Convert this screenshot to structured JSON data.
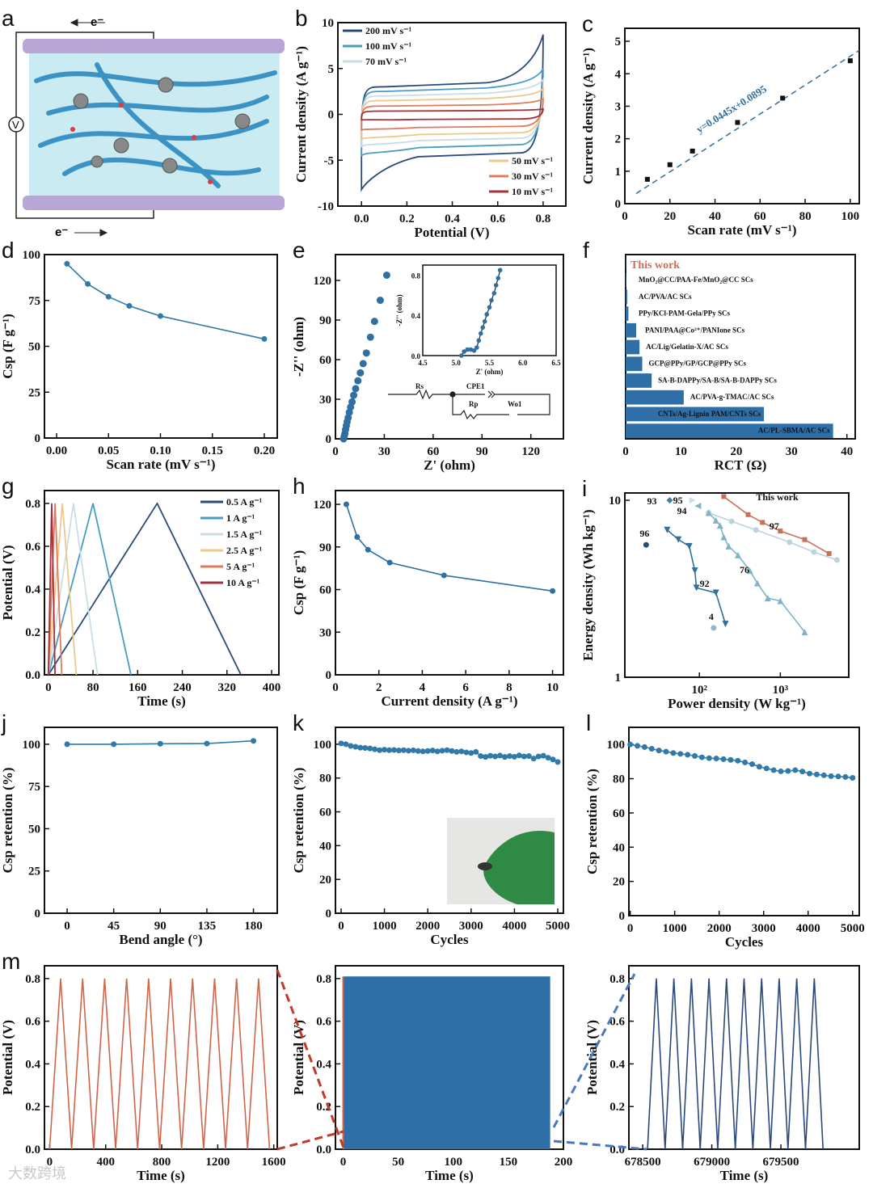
{
  "panel_a": {
    "letter": "a",
    "electron": "e⁻",
    "voltmeter": "V"
  },
  "circuit": {
    "rs": "Rs",
    "cpe": "CPE1",
    "rp": "Rp",
    "wo": "Wo1"
  },
  "watermark": "大数跨境",
  "chart_data": [
    {
      "id": "b",
      "letter": "b",
      "type": "cv",
      "xlim": [
        -0.104,
        0.9
      ],
      "ylim": [
        -10,
        10
      ],
      "xticks": [
        0,
        0.2,
        0.4,
        0.6,
        0.8
      ],
      "xtick_labels": [
        "0.0",
        "0.2",
        "0.4",
        "0.6",
        "0.8"
      ],
      "yticks": [
        -10,
        -5,
        0,
        5,
        10
      ],
      "ytick_labels": [
        "-10",
        "-5",
        "0",
        "5",
        "10"
      ],
      "xlabel": "Potential (V)",
      "ylabel": "Current density (A g⁻¹)",
      "series": [
        {
          "name": "200 mV s⁻¹",
          "color": "#2b4a7a",
          "i_max": 8.7,
          "i_top": 3.0,
          "i_bot": -4.2,
          "i_min": -8.2
        },
        {
          "name": "100 mV s⁻¹",
          "color": "#4a9cc3",
          "i_max": 5.0,
          "i_top": 2.5,
          "i_bot": -3.3,
          "i_min": -4.5
        },
        {
          "name": "70 mV s⁻¹",
          "color": "#c9dde6",
          "i_max": 3.8,
          "i_top": 2.0,
          "i_bot": -2.6,
          "i_min": -3.5
        },
        {
          "name": "50 mV s⁻¹",
          "color": "#ecc98a",
          "i_max": 2.8,
          "i_top": 1.5,
          "i_bot": -2.0,
          "i_min": -2.7
        },
        {
          "name": "30 mV s⁻¹",
          "color": "#e07b5c",
          "i_max": 1.7,
          "i_top": 0.9,
          "i_bot": -1.3,
          "i_min": -1.7
        },
        {
          "name": "10 mV s⁻¹",
          "color": "#a5303c",
          "i_max": 0.6,
          "i_top": 0.35,
          "i_bot": -0.5,
          "i_min": -0.6
        }
      ]
    },
    {
      "id": "c",
      "letter": "c",
      "type": "scatter-fit",
      "xlim": [
        0,
        104
      ],
      "ylim": [
        0,
        5.4
      ],
      "xticks": [
        0,
        20,
        40,
        60,
        80,
        100
      ],
      "xtick_labels": [
        "0",
        "20",
        "40",
        "60",
        "80",
        "100"
      ],
      "yticks": [
        0,
        1,
        2,
        3,
        4,
        5
      ],
      "ytick_labels": [
        "0",
        "1",
        "2",
        "3",
        "4",
        "5"
      ],
      "xlabel": "Scan rate (mV s⁻¹)",
      "ylabel": "Current density (A g⁻¹)",
      "x": [
        10,
        20,
        30,
        50,
        70,
        100
      ],
      "y": [
        0.75,
        1.2,
        1.62,
        2.5,
        3.25,
        4.4
      ],
      "fit": {
        "slope": 0.0445,
        "intercept": 0.0895,
        "label": "y=0.0445x+0.0895",
        "color": "#2f6f9a"
      }
    },
    {
      "id": "d",
      "letter": "d",
      "type": "line",
      "xlim": [
        -0.0117,
        0.2125
      ],
      "ylim": [
        0,
        100
      ],
      "xticks": [
        0,
        0.05,
        0.1,
        0.15,
        0.2
      ],
      "xtick_labels": [
        "0.00",
        "0.05",
        "0.10",
        "0.15",
        "0.20"
      ],
      "yticks": [
        0,
        25,
        50,
        75,
        100
      ],
      "ytick_labels": [
        "0",
        "25",
        "50",
        "75",
        "100"
      ],
      "xlabel": "Scan rate (mV s⁻¹)",
      "ylabel": "Csp (F g⁻¹)",
      "series": [
        {
          "color": "#2f7aa8",
          "x": [
            0.01,
            0.03,
            0.05,
            0.07,
            0.1,
            0.2
          ],
          "y": [
            95,
            84,
            77,
            72,
            66.5,
            54
          ]
        }
      ]
    },
    {
      "id": "e",
      "letter": "e",
      "type": "scatter",
      "xlim": [
        0,
        140
      ],
      "ylim": [
        0,
        139.6
      ],
      "xticks": [
        0,
        30,
        60,
        90,
        120
      ],
      "xtick_labels": [
        "0",
        "30",
        "60",
        "90",
        "120"
      ],
      "yticks": [
        0,
        30,
        60,
        90,
        120
      ],
      "ytick_labels": [
        "0",
        "30",
        "60",
        "90",
        "120"
      ],
      "xlabel": "Z' (ohm)",
      "ylabel": "-Z'' (ohm)",
      "series": [
        {
          "color": "#2f6fa3",
          "x": [
            5,
            5.4,
            5.8,
            6.2,
            6.7,
            7.2,
            7.8,
            8.5,
            9.3,
            10.2,
            11.2,
            12.4,
            13.8,
            15.3,
            17,
            19,
            21.5,
            24,
            27.5,
            31.5
          ],
          "y": [
            0,
            2,
            4,
            7,
            10,
            13,
            16,
            20,
            24,
            28,
            33,
            38,
            44,
            50,
            57,
            65,
            77,
            89,
            105,
            124
          ]
        }
      ],
      "inset": {
        "xlim": [
          4.5,
          6.5
        ],
        "ylim": [
          0,
          0.9
        ],
        "xticks": [
          4.5,
          5.0,
          5.5,
          6.0,
          6.5
        ],
        "xtick_labels": [
          "4.5",
          "5.0",
          "5.5",
          "6.0",
          "6.5"
        ],
        "yticks": [
          0,
          0.4,
          0.8
        ],
        "ytick_labels": [
          "0.0",
          "0.4",
          "0.8"
        ],
        "xlabel": "Z' (ohm)",
        "ylabel": "-Z'' (ohm)",
        "x": [
          5.08,
          5.12,
          5.17,
          5.22,
          5.27,
          5.31,
          5.34,
          5.37,
          5.4,
          5.43,
          5.46,
          5.5,
          5.53,
          5.57,
          5.6,
          5.63,
          5.66
        ],
        "y": [
          0,
          0.04,
          0.06,
          0.06,
          0.05,
          0.08,
          0.15,
          0.22,
          0.28,
          0.34,
          0.41,
          0.48,
          0.55,
          0.62,
          0.7,
          0.77,
          0.85
        ]
      }
    },
    {
      "id": "f",
      "letter": "f",
      "type": "barh",
      "xlim": [
        0,
        41.5
      ],
      "xticks": [
        0,
        10,
        20,
        30,
        40
      ],
      "xtick_labels": [
        "0",
        "10",
        "20",
        "30",
        "40"
      ],
      "xlabel": "RCT (Ω)",
      "color": "#2f6fa8",
      "highlight_color": "#c9705a",
      "categories": [
        "This work",
        "MnO₂@CC/PAA-Fe/MnO₂@CC SCs",
        "AC/PVA/AC  SCs",
        "PPy/KCl-PAM-Gela/PPy  SCs",
        "PANI/PAA@Co²⁺/PANIone SCs",
        "AC/Lig/Gelatin-X/AC  SCs",
        "GCP@PPy/GP/GCP@PPy  SCs",
        "SA-B-DAPPy/SA-B/SA-B-DAPPy  SCs",
        "AC/PVA-g-TMAC/AC SCs",
        "CNTs/Ag-Lignin PAM/CNTs SCs",
        "AC/PL-SBMA/AC SCs"
      ],
      "values": [
        0.05,
        0.1,
        0.3,
        0.5,
        1.9,
        2.5,
        3.0,
        4.7,
        10.5,
        25,
        37.5
      ]
    },
    {
      "id": "g",
      "letter": "g",
      "type": "gcd",
      "xlim": [
        -7,
        413
      ],
      "ylim": [
        0,
        0.86
      ],
      "xticks": [
        0,
        80,
        160,
        240,
        320,
        400
      ],
      "xtick_labels": [
        "0",
        "80",
        "160",
        "240",
        "320",
        "400"
      ],
      "yticks": [
        0,
        0.2,
        0.4,
        0.6,
        0.8
      ],
      "ytick_labels": [
        "0.0",
        "0.2",
        "0.4",
        "0.6",
        "0.8"
      ],
      "xlabel": "Time (s)",
      "ylabel": "Potential (V)",
      "series": [
        {
          "name": "0.5 A g⁻¹",
          "color": "#2b4a7a",
          "t_charge": 195,
          "t_end": 345
        },
        {
          "name": "1 A g⁻¹",
          "color": "#4a9cc3",
          "t_charge": 80,
          "t_end": 148
        },
        {
          "name": "1.5 A g⁻¹",
          "color": "#c9dde6",
          "t_charge": 45,
          "t_end": 88
        },
        {
          "name": "2.5 A g⁻¹",
          "color": "#ecc98a",
          "t_charge": 25,
          "t_end": 50
        },
        {
          "name": "5 A g⁻¹",
          "color": "#e07b5c",
          "t_charge": 12,
          "t_end": 24
        },
        {
          "name": "10 A g⁻¹",
          "color": "#a5303c",
          "t_charge": 6,
          "t_end": 12
        }
      ]
    },
    {
      "id": "h",
      "letter": "h",
      "type": "line",
      "xlim": [
        0,
        10.5
      ],
      "ylim": [
        0,
        129.7
      ],
      "xticks": [
        0,
        2,
        4,
        6,
        8,
        10
      ],
      "xtick_labels": [
        "0",
        "2",
        "4",
        "6",
        "8",
        "10"
      ],
      "yticks": [
        0,
        30,
        60,
        90,
        120
      ],
      "ytick_labels": [
        "0",
        "30",
        "60",
        "90",
        "120"
      ],
      "xlabel": "Current density (A g⁻¹)",
      "ylabel": "Csp (F g⁻¹)",
      "series": [
        {
          "color": "#2f6fa3",
          "x": [
            0.5,
            1,
            1.5,
            2.5,
            5,
            10
          ],
          "y": [
            120,
            97,
            88,
            79,
            70,
            59
          ]
        }
      ]
    },
    {
      "id": "i",
      "letter": "i",
      "type": "ragone",
      "xscale": "log",
      "yscale": "log",
      "xlim": [
        12,
        7000
      ],
      "ylim": [
        1,
        11
      ],
      "xticks": [
        100,
        1000
      ],
      "xtick_labels": [
        "10²",
        "10³"
      ],
      "yticks": [
        1,
        10
      ],
      "ytick_labels": [
        "1",
        "10"
      ],
      "xlabel": "Power density (W kg⁻¹)",
      "ylabel": "Energy density (Wh kg⁻¹)",
      "series": [
        {
          "name": "This work",
          "color": "#c9705a",
          "marker": "square",
          "x": [
            200,
            400,
            600,
            1000,
            2000,
            4000
          ],
          "y": [
            10.5,
            8.3,
            7.5,
            6.7,
            6.0,
            5.0
          ]
        },
        {
          "name": "97",
          "color": "#b9d3df",
          "marker": "circle",
          "x": [
            130,
            250,
            500,
            1300,
            2600,
            5000
          ],
          "y": [
            8.5,
            7.6,
            6.8,
            5.8,
            5.1,
            4.6
          ]
        },
        {
          "name": "76",
          "color": "#7fb3c9",
          "marker": "tri-up",
          "x": [
            130,
            160,
            180,
            200,
            230,
            300,
            420,
            520,
            700,
            1000,
            2000
          ],
          "y": [
            8.5,
            7.7,
            7.2,
            6.2,
            5.5,
            4.9,
            4.0,
            3.4,
            2.8,
            2.7,
            1.8
          ]
        },
        {
          "name": "92",
          "color": "#2f6f9a",
          "marker": "tri-down",
          "x": [
            40,
            55,
            75,
            88,
            92,
            160,
            210
          ],
          "y": [
            6.8,
            6.0,
            5.5,
            4.0,
            3.2,
            3.0,
            2.0
          ]
        },
        {
          "name": "96",
          "color": "#2b4a7a",
          "marker": "circle",
          "x": [
            22
          ],
          "y": [
            5.6
          ]
        },
        {
          "name": "93",
          "color": "#3d7fa8",
          "marker": "diamond",
          "x": [
            43
          ],
          "y": [
            10
          ]
        },
        {
          "name": "95",
          "color": "#c9dde6",
          "marker": "tri-right",
          "x": [
            82
          ],
          "y": [
            10
          ]
        },
        {
          "name": "94",
          "color": "#7fb3c9",
          "marker": "tri-left",
          "x": [
            96
          ],
          "y": [
            9.3
          ]
        },
        {
          "name": "4",
          "color": "#8fb7c7",
          "marker": "circle",
          "x": [
            150
          ],
          "y": [
            1.9
          ]
        }
      ]
    },
    {
      "id": "j",
      "letter": "j",
      "type": "line",
      "xlim": [
        -21.9,
        203
      ],
      "ylim": [
        0,
        110
      ],
      "xticks": [
        0,
        45,
        90,
        135,
        180
      ],
      "xtick_labels": [
        "0",
        "45",
        "90",
        "135",
        "180"
      ],
      "yticks": [
        0,
        25,
        50,
        75,
        100
      ],
      "ytick_labels": [
        "0",
        "25",
        "50",
        "75",
        "100"
      ],
      "xlabel": "Bend angle (°)",
      "ylabel": "Csp retention (%)",
      "series": [
        {
          "color": "#2f7aa8",
          "x": [
            0,
            45,
            90,
            135,
            180
          ],
          "y": [
            100,
            100,
            100.3,
            100.4,
            102
          ]
        }
      ]
    },
    {
      "id": "k",
      "letter": "k",
      "type": "line",
      "xlim": [
        -130,
        5130
      ],
      "ylim": [
        0,
        110
      ],
      "xticks": [
        0,
        1000,
        2000,
        3000,
        4000,
        5000
      ],
      "xtick_labels": [
        "0",
        "1000",
        "2000",
        "3000",
        "4000",
        "5000"
      ],
      "yticks": [
        0,
        20,
        40,
        60,
        80,
        100
      ],
      "ytick_labels": [
        "0",
        "20",
        "40",
        "60",
        "80",
        "100"
      ],
      "xlabel": "Cycles",
      "ylabel": "Csp retention (%)",
      "series": [
        {
          "color": "#2f7aa8",
          "x_step": 111.1,
          "y": [
            100.5,
            100,
            99,
            98.5,
            98,
            97.8,
            97.5,
            97,
            96.5,
            96.8,
            96.5,
            96.6,
            96.3,
            96.5,
            96.2,
            96.4,
            96,
            95.8,
            96,
            96.3,
            95.8,
            96.2,
            96.5,
            96,
            95.5,
            95.8,
            95.2,
            94.8,
            95.5,
            93,
            92.5,
            93.2,
            92.8,
            93.3,
            92.5,
            93,
            92.6,
            93.4,
            92.8,
            93,
            91.5,
            92.8,
            93.2,
            92,
            91,
            89.5
          ]
        }
      ]
    },
    {
      "id": "l",
      "letter": "l",
      "type": "line",
      "xlim": [
        -30,
        5150
      ],
      "ylim": [
        0,
        110
      ],
      "xticks": [
        0,
        1000,
        2000,
        3000,
        4000,
        5000
      ],
      "xtick_labels": [
        "0",
        "1000",
        "2000",
        "3000",
        "4000",
        "5000"
      ],
      "yticks": [
        0,
        20,
        40,
        60,
        80,
        100
      ],
      "ytick_labels": [
        "0",
        "20",
        "40",
        "60",
        "80",
        "100"
      ],
      "xlabel": "Cycles",
      "ylabel": "Csp retention (%)",
      "series": [
        {
          "color": "#2f7aa8",
          "x_step": 161.3,
          "y": [
            100,
            99.2,
            98.5,
            97.5,
            96.5,
            95.8,
            95,
            94.5,
            94,
            93.3,
            92.5,
            92,
            91.8,
            91.4,
            91,
            90.5,
            89.5,
            88.5,
            87,
            86,
            85,
            84.3,
            84.5,
            85,
            84.2,
            83,
            82.5,
            82,
            81.5,
            81.3,
            81,
            80.5
          ]
        }
      ]
    },
    {
      "id": "m1",
      "letter": "m",
      "type": "wave",
      "xlim": [
        -37,
        1625
      ],
      "ylim": [
        0,
        0.86
      ],
      "xticks": [
        0,
        400,
        800,
        1200,
        1600
      ],
      "xtick_labels": [
        "0",
        "400",
        "800",
        "1200",
        "1600"
      ],
      "yticks": [
        0,
        0.2,
        0.4,
        0.6,
        0.8
      ],
      "ytick_labels": [
        "0.0",
        "0.2",
        "0.4",
        "0.6",
        "0.8"
      ],
      "xlabel": "Time (s)",
      "ylabel": "Potential (V)",
      "color": "#d0654a",
      "t0": 0,
      "period": 157,
      "cycles": 10,
      "vmax": 0.8
    },
    {
      "id": "m2",
      "letter": "",
      "type": "block",
      "xlim": [
        -7,
        200
      ],
      "ylim": [
        0,
        0.86
      ],
      "xticks": [
        0,
        50,
        100,
        150,
        200
      ],
      "xtick_labels": [
        "0",
        "50",
        "100",
        "150",
        "200"
      ],
      "yticks": [
        0,
        0.2,
        0.4,
        0.6,
        0.8
      ],
      "ytick_labels": [
        "0.0",
        "0.2",
        "0.4",
        "0.6",
        "0.8"
      ],
      "xlabel": "Time (s)",
      "ylabel": "Potential (V)",
      "color": "#2f6fa8",
      "edge_color": "#d0654a",
      "t_start": 0,
      "t_end": 188,
      "vmax": 0.81
    },
    {
      "id": "m3",
      "letter": "",
      "type": "wave",
      "xlim": [
        678400,
        680067
      ],
      "ylim": [
        0,
        0.86
      ],
      "xticks": [
        678500,
        679000,
        679500
      ],
      "xtick_labels": [
        "678500",
        "679000",
        "679500"
      ],
      "yticks": [
        0,
        0.2,
        0.4,
        0.6,
        0.8
      ],
      "ytick_labels": [
        "0.0",
        "0.2",
        "0.4",
        "0.6",
        "0.8"
      ],
      "xlabel": "Time (s)",
      "ylabel": "Potential (V)",
      "color": "#2b4a7a",
      "t0": 678535,
      "period": 127,
      "cycles": 10,
      "vmax": 0.8
    }
  ]
}
